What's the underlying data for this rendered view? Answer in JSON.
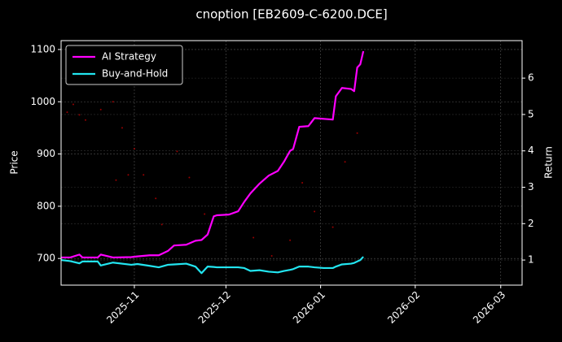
{
  "chart_data": {
    "type": "line",
    "title": "cnoption [EB2609-C-6200.DCE]",
    "ylabel": "Price",
    "y2label": "Return",
    "x": [
      "2025-10-08",
      "2025-10-11",
      "2025-10-14",
      "2025-10-15",
      "2025-10-20",
      "2025-10-21",
      "2025-10-25",
      "2025-10-31",
      "2025-11-02",
      "2025-11-06",
      "2025-11-09",
      "2025-11-12",
      "2025-11-14",
      "2025-11-18",
      "2025-11-21",
      "2025-11-23",
      "2025-11-25",
      "2025-11-27",
      "2025-11-28",
      "2025-12-02",
      "2025-12-05",
      "2025-12-07",
      "2025-12-09",
      "2025-12-12",
      "2025-12-15",
      "2025-12-18",
      "2025-12-20",
      "2025-12-22",
      "2025-12-23",
      "2025-12-25",
      "2025-12-28",
      "2025-12-30",
      "2026-01-02",
      "2026-01-05",
      "2026-01-06",
      "2026-01-08",
      "2026-01-11",
      "2026-01-12",
      "2026-01-13",
      "2026-01-14",
      "2026-01-15"
    ],
    "series": [
      {
        "name": "AI Strategy",
        "color": "#ff00ff",
        "axis": "y2",
        "values": [
          1.07,
          1.07,
          1.15,
          1.07,
          1.07,
          1.15,
          1.07,
          1.08,
          1.1,
          1.13,
          1.13,
          1.25,
          1.4,
          1.42,
          1.53,
          1.55,
          1.7,
          2.2,
          2.23,
          2.25,
          2.34,
          2.6,
          2.83,
          3.1,
          3.32,
          3.45,
          3.7,
          4.0,
          4.05,
          4.66,
          4.68,
          4.9,
          4.88,
          4.86,
          5.5,
          5.73,
          5.7,
          5.64,
          6.29,
          6.38,
          6.74
        ]
      },
      {
        "name": "Buy-and-Hold",
        "color": "#22e5f0",
        "axis": "y2",
        "values": [
          1.0,
          0.97,
          0.91,
          0.96,
          0.96,
          0.85,
          0.93,
          0.87,
          0.89,
          0.84,
          0.8,
          0.87,
          0.88,
          0.9,
          0.82,
          0.64,
          0.82,
          0.81,
          0.8,
          0.8,
          0.8,
          0.78,
          0.7,
          0.72,
          0.68,
          0.66,
          0.7,
          0.73,
          0.75,
          0.82,
          0.82,
          0.8,
          0.78,
          0.78,
          0.82,
          0.88,
          0.9,
          0.92,
          0.96,
          1.0,
          1.09
        ]
      }
    ],
    "scatter": {
      "color": "#ff0000",
      "x": [
        "2025-10-10",
        "2025-10-12",
        "2025-10-14",
        "2025-10-16",
        "2025-10-21",
        "2025-10-25",
        "2025-10-26",
        "2025-10-28",
        "2025-10-30",
        "2025-11-01",
        "2025-11-04",
        "2025-11-08",
        "2025-11-10",
        "2025-11-15",
        "2025-11-19",
        "2025-11-24",
        "2025-12-10",
        "2025-12-16",
        "2025-12-22",
        "2025-12-26",
        "2025-12-30",
        "2026-01-05",
        "2026-01-09",
        "2026-01-13"
      ],
      "values": [
        980,
        995,
        975,
        965,
        985,
        1000,
        850,
        950,
        860,
        910,
        860,
        815,
        765,
        905,
        855,
        785,
        740,
        705,
        735,
        845,
        790,
        760,
        885,
        940
      ]
    },
    "xlim": [
      "2025-10-08",
      "2026-03-08"
    ],
    "xticks": [
      {
        "value": "2025-11-01",
        "label": "2025-11"
      },
      {
        "value": "2025-12-01",
        "label": "2025-12"
      },
      {
        "value": "2026-01-01",
        "label": "2026-01"
      },
      {
        "value": "2026-02-01",
        "label": "2026-02"
      },
      {
        "value": "2026-03-01",
        "label": "2026-03"
      }
    ],
    "ylim": [
      649,
      1117
    ],
    "yticks": [
      700,
      800,
      900,
      1000,
      1100
    ],
    "y2lim": [
      0.31,
      7.03
    ],
    "y2ticks": [
      1,
      2,
      3,
      4,
      5,
      6
    ],
    "grid": true,
    "legend": "upper-left"
  }
}
